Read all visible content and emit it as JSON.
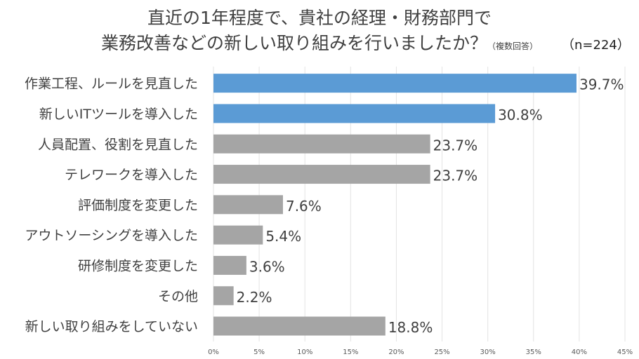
{
  "chart_data": {
    "type": "bar",
    "orientation": "horizontal",
    "title_line1": "直近の1年程度で、貴社の経理・財務部門で",
    "title_line2": "業務改善などの新しい取り組みを行いましたか？",
    "title_note": "（複数回答）",
    "sample_note": "（n=224）",
    "categories": [
      "作業工程、ルールを見直した",
      "新しいITツールを導入した",
      "人員配置、役割を見直した",
      "テレワークを導入した",
      "評価制度を変更した",
      "アウトソーシングを導入した",
      "研修制度を変更した",
      "その他",
      "新しい取り組みをしていない"
    ],
    "values": [
      39.7,
      30.8,
      23.7,
      23.7,
      7.6,
      5.4,
      3.6,
      2.2,
      18.8
    ],
    "value_labels": [
      "39.7%",
      "30.8%",
      "23.7%",
      "23.7%",
      "7.6%",
      "5.4%",
      "3.6%",
      "2.2%",
      "18.8%"
    ],
    "highlight_count": 2,
    "colors": {
      "highlight": "#5b9bd5",
      "default": "#a5a5a5",
      "grid": "#e3e3e3"
    },
    "xlim": [
      0,
      45
    ],
    "xticks": [
      "0%",
      "5%",
      "10%",
      "15%",
      "20%",
      "25%",
      "30%",
      "35%",
      "40%",
      "45%"
    ],
    "grid": true,
    "legend": "none"
  }
}
